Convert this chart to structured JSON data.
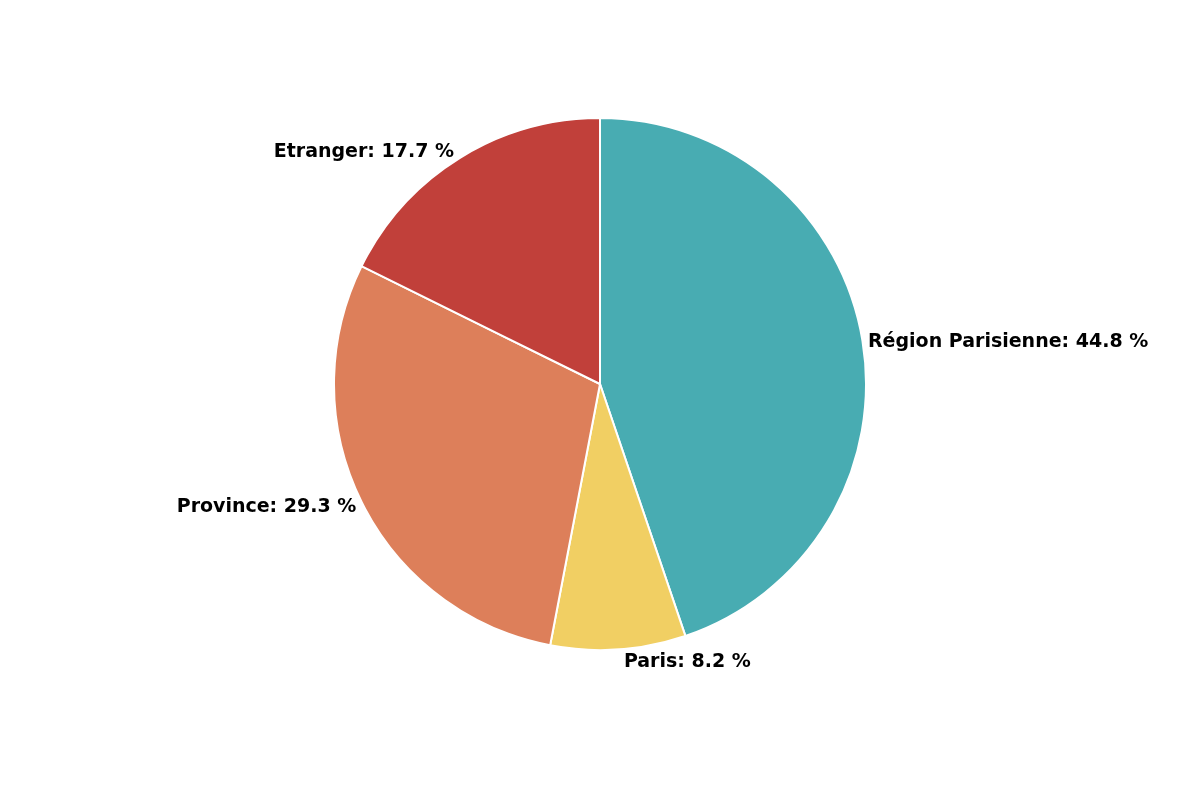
{
  "chart_data": {
    "type": "pie",
    "categories": [
      "Région Parisienne",
      "Paris",
      "Province",
      "Etranger"
    ],
    "values": [
      44.8,
      8.2,
      29.3,
      17.7
    ],
    "value_labels": [
      "44.8 %",
      "8.2 %",
      "29.3 %",
      "17.7 %"
    ],
    "colors": [
      "#48acb2",
      "#f1cf63",
      "#dd7f5a",
      "#c1403a"
    ],
    "legend": false
  }
}
